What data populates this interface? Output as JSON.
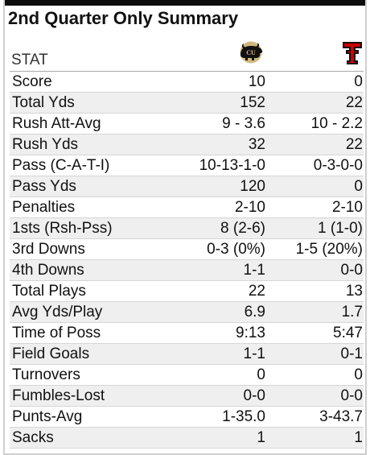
{
  "title": "2nd Quarter Only Summary",
  "header": {
    "stat_label": "STAT",
    "team_a_logo": "colorado-buffaloes-logo",
    "team_b_logo": "texas-tech-logo"
  },
  "colors": {
    "topbar": "#0d0d0d",
    "alt_row": "#efefef",
    "cu_black": "#111111",
    "cu_gold": "#cfb87c",
    "tt_red": "#cc0000"
  },
  "rows": [
    {
      "label": "Score",
      "a": "10",
      "b": "0"
    },
    {
      "label": "Total Yds",
      "a": "152",
      "b": "22"
    },
    {
      "label": "Rush Att-Avg",
      "a": "9 - 3.6",
      "b": "10 - 2.2"
    },
    {
      "label": "Rush Yds",
      "a": "32",
      "b": "22"
    },
    {
      "label": "Pass (C-A-T-I)",
      "a": "10-13-1-0",
      "b": "0-3-0-0"
    },
    {
      "label": "Pass Yds",
      "a": "120",
      "b": "0"
    },
    {
      "label": "Penalties",
      "a": "2-10",
      "b": "2-10"
    },
    {
      "label": "1sts (Rsh-Pss)",
      "a": "8 (2-6)",
      "b": "1 (1-0)"
    },
    {
      "label": "3rd Downs",
      "a": "0-3 (0%)",
      "b": "1-5 (20%)"
    },
    {
      "label": "4th Downs",
      "a": "1-1",
      "b": "0-0"
    },
    {
      "label": "Total Plays",
      "a": "22",
      "b": "13"
    },
    {
      "label": "Avg Yds/Play",
      "a": "6.9",
      "b": "1.7"
    },
    {
      "label": "Time of Poss",
      "a": "9:13",
      "b": "5:47"
    },
    {
      "label": "Field Goals",
      "a": "1-1",
      "b": "0-1"
    },
    {
      "label": "Turnovers",
      "a": "0",
      "b": "0"
    },
    {
      "label": "Fumbles-Lost",
      "a": "0-0",
      "b": "0-0"
    },
    {
      "label": "Punts-Avg",
      "a": "1-35.0",
      "b": "3-43.7"
    },
    {
      "label": "Sacks",
      "a": "1",
      "b": "1"
    }
  ]
}
